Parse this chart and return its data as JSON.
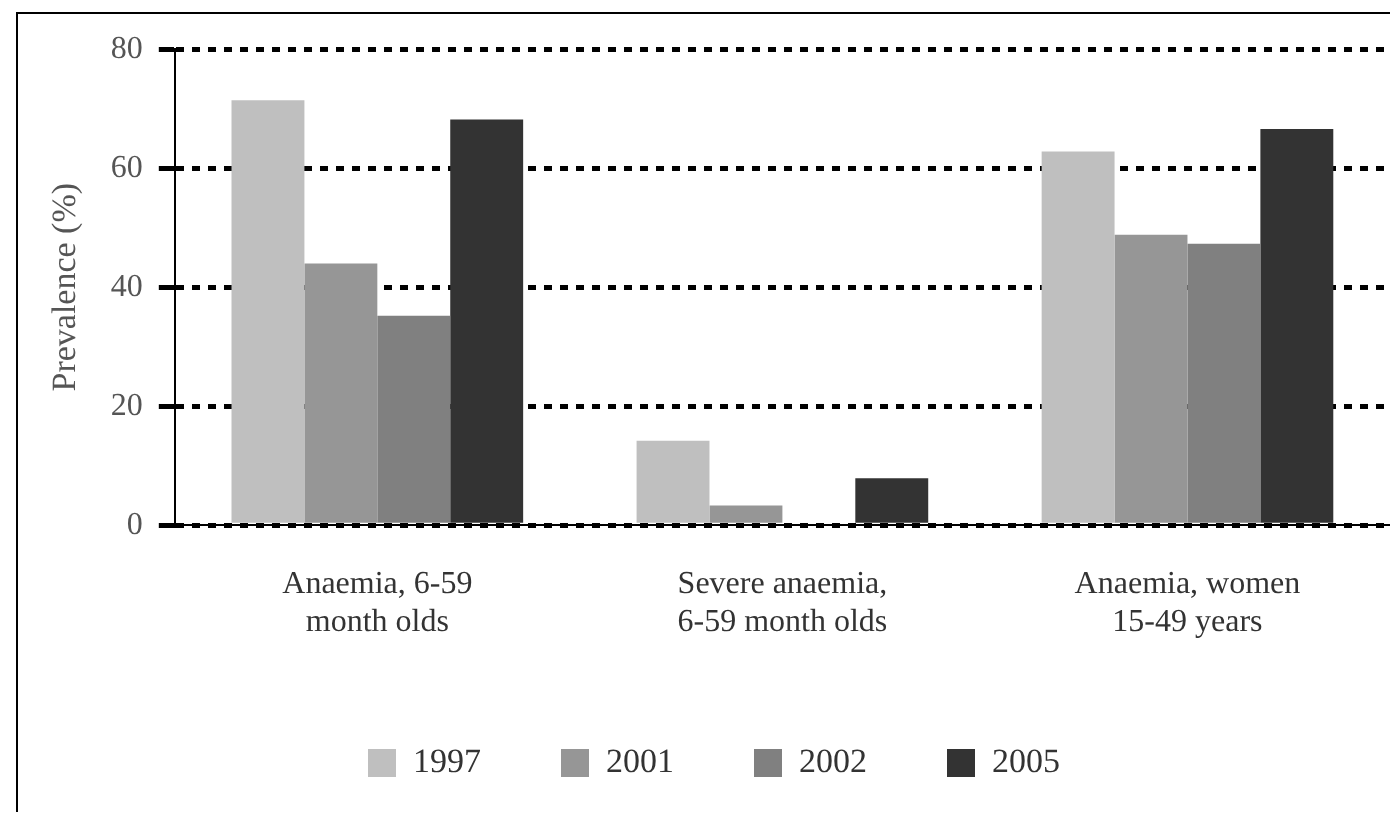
{
  "chart_data": {
    "type": "bar",
    "ylabel": "Prevalence (%)",
    "categories": [
      "Anaemia, 6-59 month olds",
      "Severe anaemia, 6-59 month olds",
      "Anaemia, women 15-49 years"
    ],
    "series": [
      {
        "name": "1997",
        "color": "#bfbfbf",
        "values": [
          71.4,
          14.2,
          62.8
        ]
      },
      {
        "name": "2001",
        "color": "#969696",
        "values": [
          44,
          3.3,
          48.8
        ]
      },
      {
        "name": "2002",
        "color": "#808080",
        "values": [
          35.2,
          null,
          47.3
        ]
      },
      {
        "name": "2005",
        "color": "#333333",
        "values": [
          68.2,
          7.9,
          66.6
        ]
      }
    ],
    "ylim": [
      0,
      80
    ],
    "yticks": [
      0,
      20,
      40,
      60,
      80
    ],
    "grid": "y",
    "legend": "bottom"
  }
}
